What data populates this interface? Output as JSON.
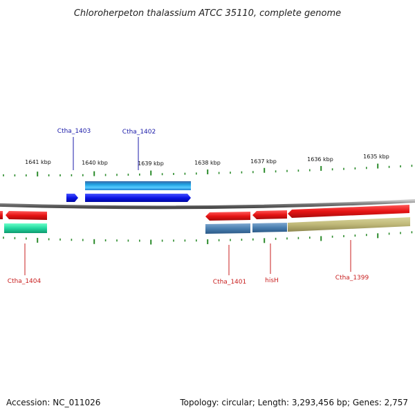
{
  "title": "Chloroherpeton thalassium ATCC 35110, complete genome",
  "footer": {
    "accession": "Accession: NC_011026",
    "summary": "Topology: circular; Length: 3,293,456 bp; Genes: 2,757"
  },
  "colors": {
    "backbone": "#8a8a8a",
    "tick": "#2a8a2a",
    "forward_label": "#1a1aa8",
    "reverse_label": "#c81e1e"
  },
  "ruler": {
    "ticks": [
      "1641 kbp",
      "1640 kbp",
      "1639 kbp",
      "1638 kbp",
      "1637 kbp",
      "1636 kbp",
      "1635 kbp"
    ]
  },
  "genes": [
    {
      "id": "g1403",
      "label": "Ctha_1403",
      "strand": "forward",
      "color": "#0a14e6",
      "labeled": true
    },
    {
      "id": "g1402",
      "label": "Ctha_1402",
      "strand": "forward",
      "color": "#0a14e6",
      "labeled": true
    },
    {
      "id": "g1402b",
      "label": "",
      "strand": "forward",
      "color": "#1e9fe0",
      "labeled": false
    },
    {
      "id": "g1404",
      "label": "Ctha_1404",
      "strand": "reverse",
      "color": "#e61414",
      "labeled": true
    },
    {
      "id": "g1404b",
      "label": "",
      "strand": "reverse",
      "color": "#22d8a0",
      "labeled": false
    },
    {
      "id": "g1401",
      "label": "Ctha_1401",
      "strand": "reverse",
      "color": "#e61414",
      "labeled": true
    },
    {
      "id": "gHisH",
      "label": "hisH",
      "strand": "reverse",
      "color": "#e61414",
      "labeled": true
    },
    {
      "id": "g1399",
      "label": "Ctha_1399",
      "strand": "reverse",
      "color": "#e61414",
      "labeled": true
    }
  ]
}
